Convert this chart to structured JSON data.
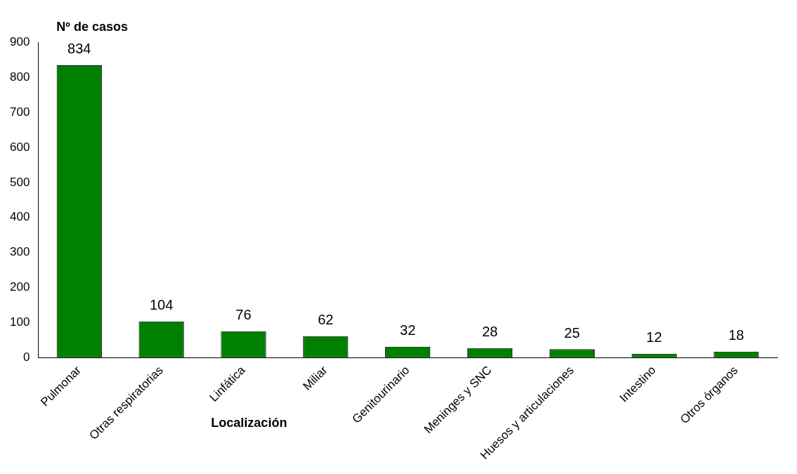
{
  "chart_data": {
    "type": "bar",
    "ylabel": "Nº de casos",
    "xlabel": "Localización",
    "categories": [
      "Pulmonar",
      "Otras respiratorias",
      "Linfática",
      "Miliar",
      "Genitourinario",
      "Meninges y SNC",
      "Huesos y articulaciones",
      "Intestino",
      "Otros órganos"
    ],
    "values": [
      834,
      104,
      76,
      62,
      32,
      28,
      25,
      12,
      18
    ],
    "color": "#008000",
    "ylim": [
      0,
      900
    ],
    "yticks": [
      0,
      100,
      200,
      300,
      400,
      500,
      600,
      700,
      800,
      900
    ],
    "grid": false,
    "legend": false,
    "data_labels": true
  }
}
